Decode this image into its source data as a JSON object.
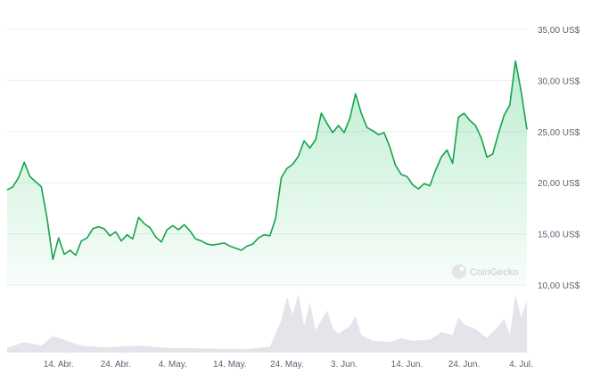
{
  "watermark": "CoinGecko",
  "colors": {
    "price_line": "#16a34a",
    "price_fill_top": "#16c15a",
    "volume_fill": "#d9dce3",
    "grid": "#eceef1",
    "tick_text": "#5b6170"
  },
  "chart_data": {
    "type": "line",
    "title": "",
    "xlabel": "",
    "ylabel": "",
    "y_unit": "US$",
    "ylim": [
      10,
      35
    ],
    "y_ticks": [
      {
        "value": 35,
        "label": "35,00 US$"
      },
      {
        "value": 30,
        "label": "30,00 US$"
      },
      {
        "value": 25,
        "label": "25,00 US$"
      },
      {
        "value": 20,
        "label": "20,00 US$"
      },
      {
        "value": 15,
        "label": "15,00 US$"
      },
      {
        "value": 10,
        "label": "10,00 US$"
      }
    ],
    "x_range": [
      "2023-04-05",
      "2023-07-05"
    ],
    "x_ticks": [
      {
        "date": "2023-04-14",
        "label": "14. Abr."
      },
      {
        "date": "2023-04-24",
        "label": "24. Abr."
      },
      {
        "date": "2023-05-04",
        "label": "4. May."
      },
      {
        "date": "2023-05-14",
        "label": "14. May."
      },
      {
        "date": "2023-05-24",
        "label": "24. May."
      },
      {
        "date": "2023-06-03",
        "label": "3. Jun."
      },
      {
        "date": "2023-06-14",
        "label": "14. Jun."
      },
      {
        "date": "2023-06-24",
        "label": "24. Jun."
      },
      {
        "date": "2023-07-04",
        "label": "4. Jul."
      }
    ],
    "grid": true,
    "series": [
      {
        "values": [
          [
            "2023-04-05",
            19.3
          ],
          [
            "2023-04-06",
            19.6
          ],
          [
            "2023-04-07",
            20.5
          ],
          [
            "2023-04-08",
            22.0
          ],
          [
            "2023-04-09",
            20.6
          ],
          [
            "2023-04-10",
            20.1
          ],
          [
            "2023-04-11",
            19.6
          ],
          [
            "2023-04-12",
            16.5
          ],
          [
            "2023-04-13",
            12.5
          ],
          [
            "2023-04-14",
            14.6
          ],
          [
            "2023-04-15",
            13.0
          ],
          [
            "2023-04-16",
            13.4
          ],
          [
            "2023-04-17",
            12.9
          ],
          [
            "2023-04-18",
            14.3
          ],
          [
            "2023-04-19",
            14.6
          ],
          [
            "2023-04-20",
            15.5
          ],
          [
            "2023-04-21",
            15.7
          ],
          [
            "2023-04-22",
            15.5
          ],
          [
            "2023-04-23",
            14.8
          ],
          [
            "2023-04-24",
            15.2
          ],
          [
            "2023-04-25",
            14.3
          ],
          [
            "2023-04-26",
            14.9
          ],
          [
            "2023-04-27",
            14.5
          ],
          [
            "2023-04-28",
            16.6
          ],
          [
            "2023-04-29",
            16.0
          ],
          [
            "2023-04-30",
            15.6
          ],
          [
            "2023-05-01",
            14.7
          ],
          [
            "2023-05-02",
            14.2
          ],
          [
            "2023-05-03",
            15.4
          ],
          [
            "2023-05-04",
            15.8
          ],
          [
            "2023-05-05",
            15.4
          ],
          [
            "2023-05-06",
            15.9
          ],
          [
            "2023-05-07",
            15.3
          ],
          [
            "2023-05-08",
            14.5
          ],
          [
            "2023-05-09",
            14.3
          ],
          [
            "2023-05-10",
            14.0
          ],
          [
            "2023-05-11",
            13.9
          ],
          [
            "2023-05-12",
            14.0
          ],
          [
            "2023-05-13",
            14.1
          ],
          [
            "2023-05-14",
            13.8
          ],
          [
            "2023-05-15",
            13.6
          ],
          [
            "2023-05-16",
            13.4
          ],
          [
            "2023-05-17",
            13.8
          ],
          [
            "2023-05-18",
            14.0
          ],
          [
            "2023-05-19",
            14.6
          ],
          [
            "2023-05-20",
            14.9
          ],
          [
            "2023-05-21",
            14.8
          ],
          [
            "2023-05-22",
            16.5
          ],
          [
            "2023-05-23",
            20.5
          ],
          [
            "2023-05-24",
            21.4
          ],
          [
            "2023-05-25",
            21.8
          ],
          [
            "2023-05-26",
            22.6
          ],
          [
            "2023-05-27",
            24.1
          ],
          [
            "2023-05-28",
            23.4
          ],
          [
            "2023-05-29",
            24.2
          ],
          [
            "2023-05-30",
            26.8
          ],
          [
            "2023-05-31",
            25.8
          ],
          [
            "2023-06-01",
            24.9
          ],
          [
            "2023-06-02",
            25.6
          ],
          [
            "2023-06-03",
            24.9
          ],
          [
            "2023-06-04",
            26.3
          ],
          [
            "2023-06-05",
            28.7
          ],
          [
            "2023-06-06",
            26.8
          ],
          [
            "2023-06-07",
            25.4
          ],
          [
            "2023-06-08",
            25.1
          ],
          [
            "2023-06-09",
            24.7
          ],
          [
            "2023-06-10",
            24.9
          ],
          [
            "2023-06-11",
            23.5
          ],
          [
            "2023-06-12",
            21.7
          ],
          [
            "2023-06-13",
            20.8
          ],
          [
            "2023-06-14",
            20.6
          ],
          [
            "2023-06-15",
            19.8
          ],
          [
            "2023-06-16",
            19.4
          ],
          [
            "2023-06-17",
            19.9
          ],
          [
            "2023-06-18",
            19.7
          ],
          [
            "2023-06-19",
            21.2
          ],
          [
            "2023-06-20",
            22.5
          ],
          [
            "2023-06-21",
            23.2
          ],
          [
            "2023-06-22",
            21.9
          ],
          [
            "2023-06-23",
            26.4
          ],
          [
            "2023-06-24",
            26.8
          ],
          [
            "2023-06-25",
            26.1
          ],
          [
            "2023-06-26",
            25.6
          ],
          [
            "2023-06-27",
            24.4
          ],
          [
            "2023-06-28",
            22.5
          ],
          [
            "2023-06-29",
            22.8
          ],
          [
            "2023-06-30",
            24.8
          ],
          [
            "2023-07-01",
            26.6
          ],
          [
            "2023-07-02",
            27.6
          ],
          [
            "2023-07-03",
            31.9
          ],
          [
            "2023-07-04",
            28.9
          ],
          [
            "2023-07-05",
            25.2
          ]
        ]
      }
    ],
    "volume_series": {
      "values": [
        [
          "2023-04-05",
          0.08
        ],
        [
          "2023-04-08",
          0.18
        ],
        [
          "2023-04-11",
          0.12
        ],
        [
          "2023-04-13",
          0.28
        ],
        [
          "2023-04-15",
          0.22
        ],
        [
          "2023-04-18",
          0.12
        ],
        [
          "2023-04-22",
          0.09
        ],
        [
          "2023-04-28",
          0.12
        ],
        [
          "2023-05-03",
          0.08
        ],
        [
          "2023-05-10",
          0.07
        ],
        [
          "2023-05-17",
          0.06
        ],
        [
          "2023-05-21",
          0.1
        ],
        [
          "2023-05-23",
          0.55
        ],
        [
          "2023-05-24",
          0.95
        ],
        [
          "2023-05-25",
          0.65
        ],
        [
          "2023-05-26",
          1.0
        ],
        [
          "2023-05-27",
          0.45
        ],
        [
          "2023-05-28",
          0.85
        ],
        [
          "2023-05-29",
          0.38
        ],
        [
          "2023-05-30",
          0.55
        ],
        [
          "2023-05-31",
          0.72
        ],
        [
          "2023-06-01",
          0.42
        ],
        [
          "2023-06-02",
          0.32
        ],
        [
          "2023-06-04",
          0.45
        ],
        [
          "2023-06-05",
          0.62
        ],
        [
          "2023-06-06",
          0.3
        ],
        [
          "2023-06-08",
          0.2
        ],
        [
          "2023-06-11",
          0.18
        ],
        [
          "2023-06-13",
          0.25
        ],
        [
          "2023-06-15",
          0.2
        ],
        [
          "2023-06-18",
          0.22
        ],
        [
          "2023-06-20",
          0.35
        ],
        [
          "2023-06-22",
          0.3
        ],
        [
          "2023-06-23",
          0.6
        ],
        [
          "2023-06-24",
          0.48
        ],
        [
          "2023-06-26",
          0.4
        ],
        [
          "2023-06-28",
          0.25
        ],
        [
          "2023-06-30",
          0.45
        ],
        [
          "2023-07-01",
          0.58
        ],
        [
          "2023-07-02",
          0.3
        ],
        [
          "2023-07-03",
          0.98
        ],
        [
          "2023-07-04",
          0.6
        ],
        [
          "2023-07-05",
          0.88
        ]
      ]
    }
  }
}
